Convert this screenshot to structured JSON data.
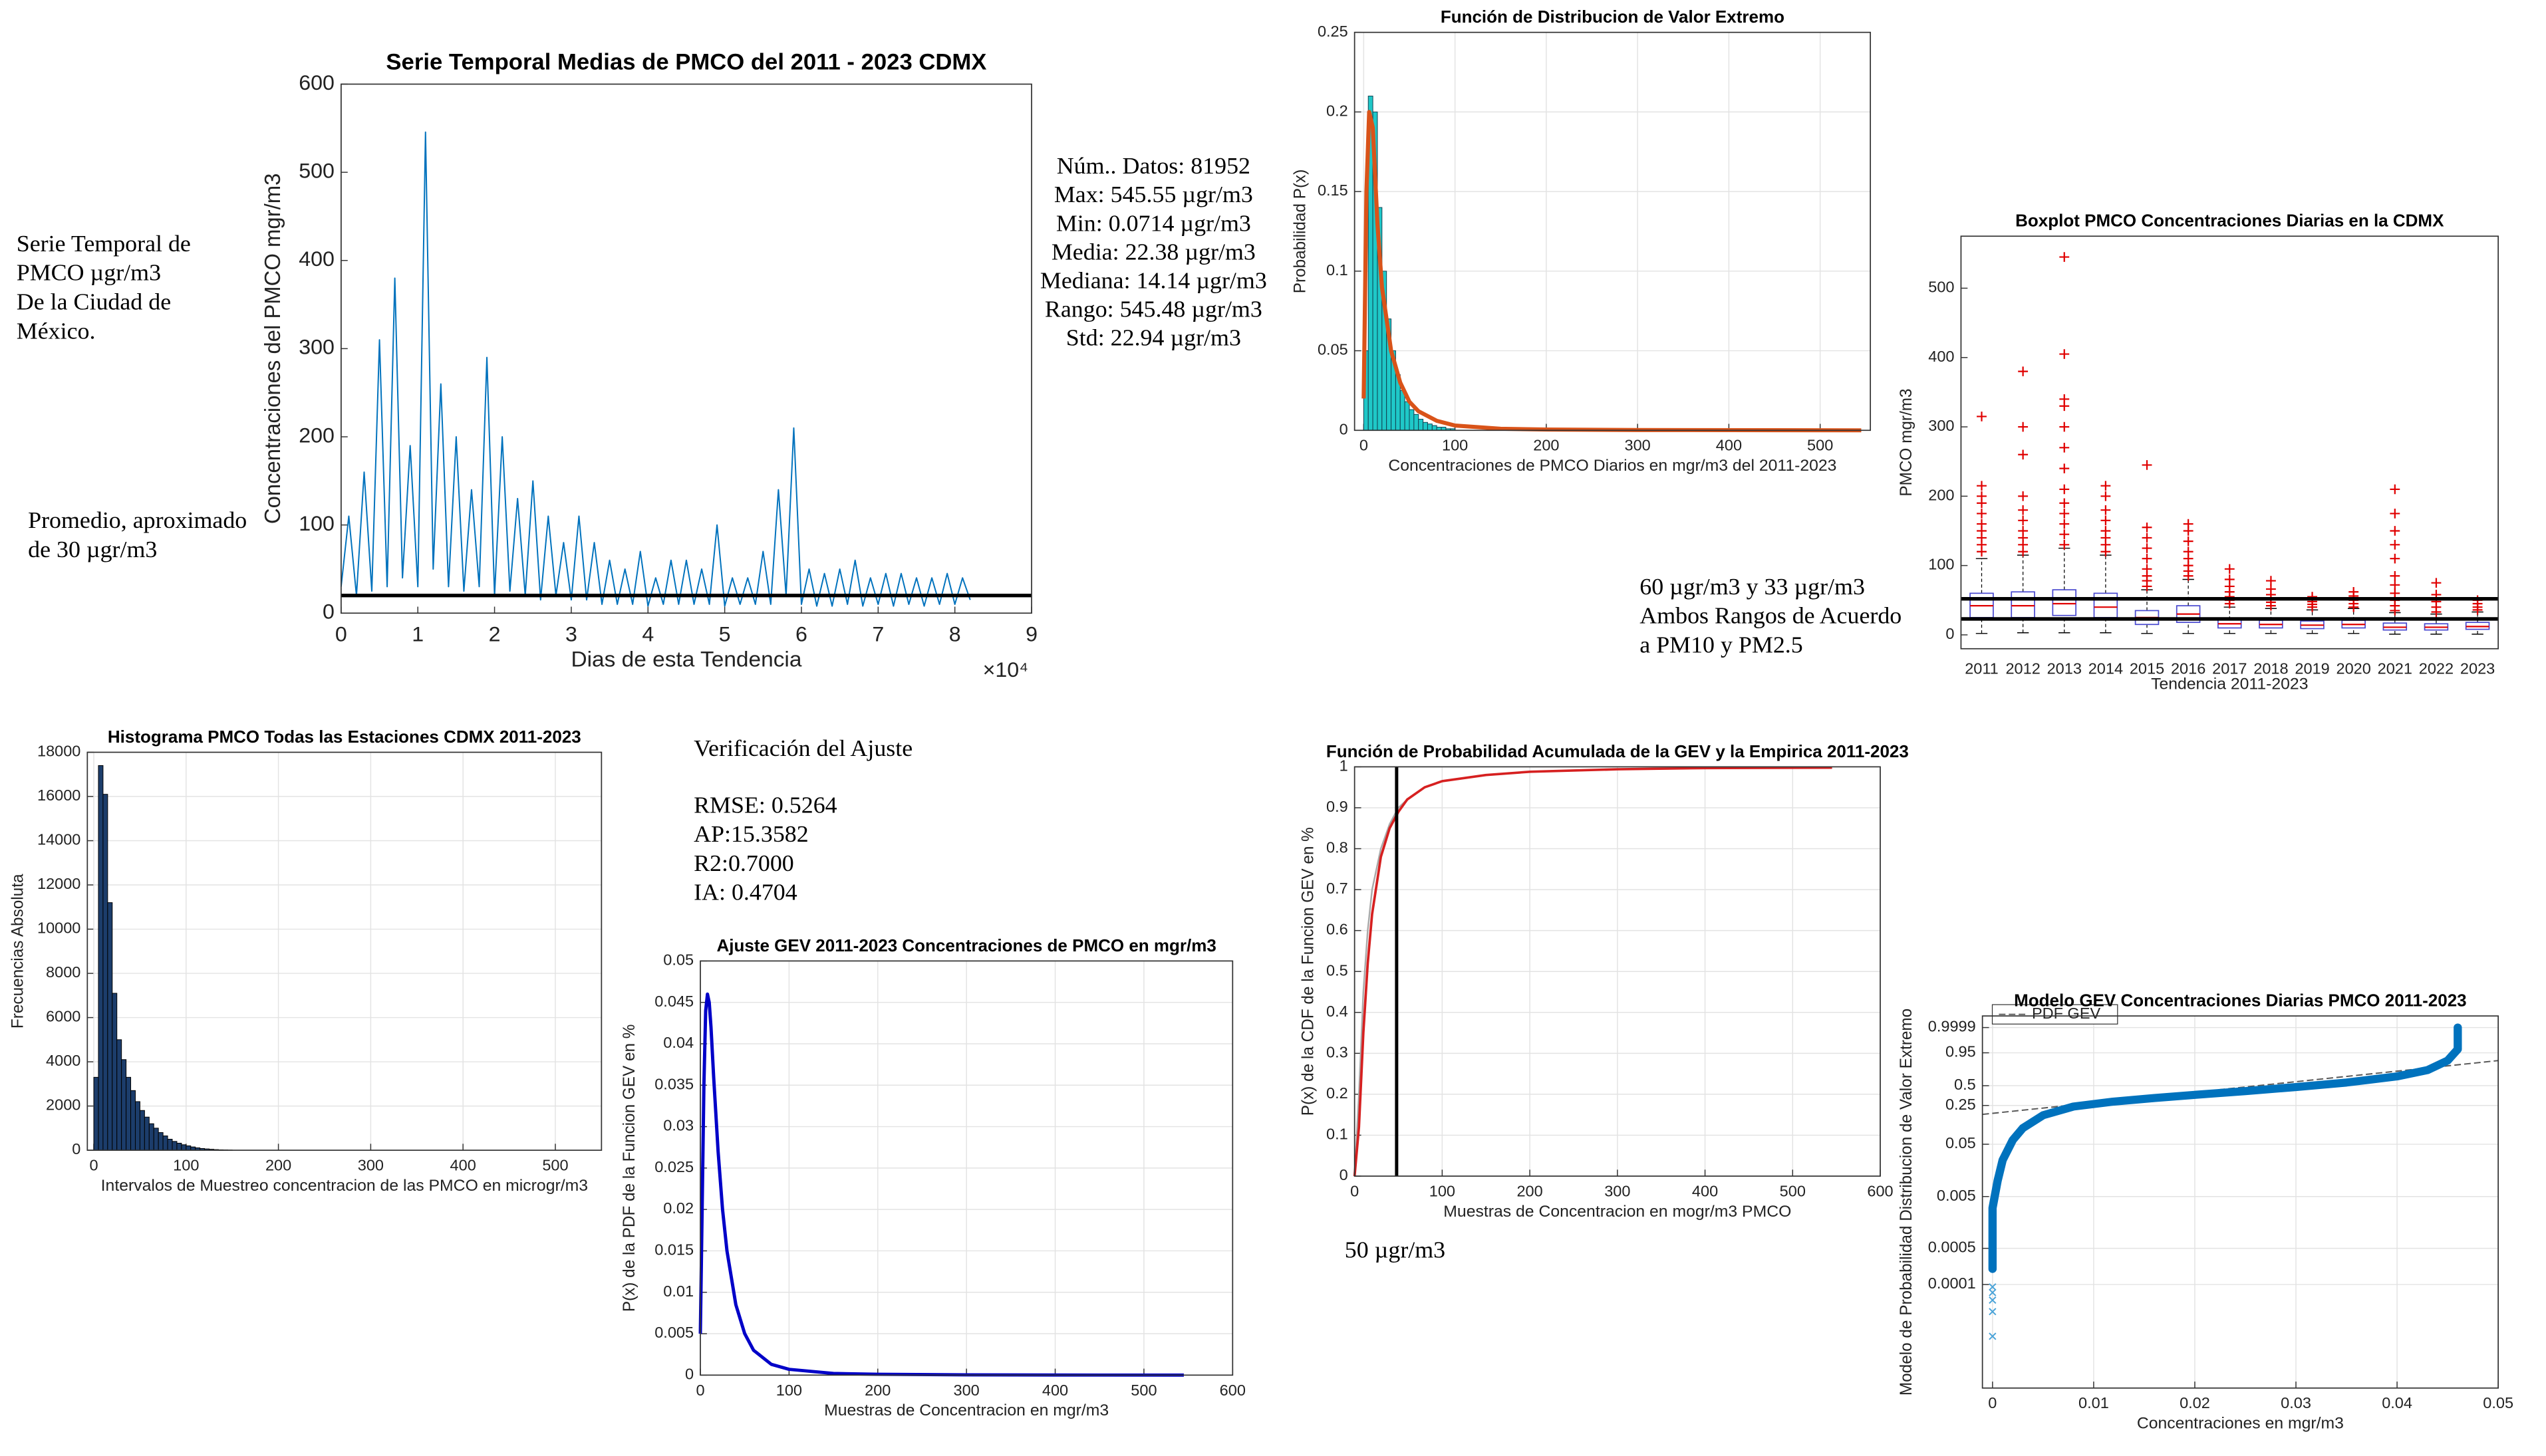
{
  "text_blocks": [
    {
      "lines": [
        "Serie Temporal de",
        "PMCO µgr/m3",
        "De la Ciudad de",
        "México."
      ]
    },
    {
      "lines": [
        "Promedio, aproximado",
        "de 30 µgr/m3"
      ]
    },
    {
      "lines": [
        "Núm.. Datos: 81952",
        "Max: 545.55 µgr/m3",
        "Min: 0.0714 µgr/m3",
        "Media: 22.38 µgr/m3",
        "Mediana: 14.14 µgr/m3",
        "Rango: 545.48 µgr/m3",
        "Std: 22.94 µgr/m3"
      ]
    },
    {
      "lines": [
        "60 µgr/m3 y 33 µgr/m3",
        "Ambos Rangos de Acuerdo",
        "a PM10 y PM2.5"
      ]
    },
    {
      "lines": [
        "Verificación del Ajuste"
      ]
    },
    {
      "lines": [
        "RMSE: 0.5264",
        "AP:15.3582",
        "R2:0.7000",
        "IA: 0.4704"
      ]
    },
    {
      "lines": [
        "50 µgr/m3"
      ]
    }
  ],
  "chart_data": [
    {
      "type": "line",
      "title": "Serie Temporal Medias de PMCO del 2011 - 2023 CDMX",
      "xlabel": "Dias de esta Tendencia",
      "ylabel": "Concentraciones del PMCO mgr/m3",
      "xlim": [
        0,
        90000
      ],
      "xticks": [
        0,
        {
          "value": 10000,
          "label": "1"
        },
        {
          "value": 20000,
          "label": "2"
        },
        {
          "value": 30000,
          "label": "3"
        },
        {
          "value": 40000,
          "label": "4"
        },
        {
          "value": 50000,
          "label": "5"
        },
        {
          "value": 60000,
          "label": "6"
        },
        {
          "value": 70000,
          "label": "7"
        },
        {
          "value": 80000,
          "label": "8"
        },
        {
          "value": 90000,
          "label": "9"
        }
      ],
      "xtick_multiplier": "×10⁴",
      "ylim": [
        0,
        600
      ],
      "yticks": [
        0,
        100,
        200,
        300,
        400,
        500,
        600
      ],
      "grid": false,
      "lines": [
        {
          "color": "#0072bd",
          "width": 0.8,
          "x": [
            0,
            1000,
            2000,
            3000,
            4000,
            5000,
            6000,
            7000,
            8000,
            9000,
            10000,
            11000,
            12000,
            13000,
            14000,
            15000,
            16000,
            17000,
            18000,
            19000,
            20000,
            21000,
            22000,
            23000,
            24000,
            25000,
            26000,
            27000,
            28000,
            29000,
            30000,
            31000,
            32000,
            33000,
            34000,
            35000,
            36000,
            37000,
            38000,
            39000,
            40000,
            41000,
            42000,
            43000,
            44000,
            45000,
            46000,
            47000,
            48000,
            49000,
            50000,
            51000,
            52000,
            53000,
            54000,
            55000,
            56000,
            57000,
            58000,
            59000,
            60000,
            61000,
            62000,
            63000,
            64000,
            65000,
            66000,
            67000,
            68000,
            69000,
            70000,
            71000,
            72000,
            73000,
            74000,
            75000,
            76000,
            77000,
            78000,
            79000,
            80000,
            81000,
            82000
          ],
          "values": [
            30,
            110,
            20,
            160,
            25,
            310,
            30,
            380,
            40,
            190,
            30,
            545.55,
            50,
            260,
            30,
            200,
            25,
            140,
            30,
            290,
            20,
            200,
            25,
            130,
            20,
            150,
            15,
            110,
            20,
            80,
            15,
            110,
            15,
            80,
            10,
            60,
            10,
            50,
            10,
            70,
            8,
            40,
            10,
            60,
            10,
            60,
            10,
            50,
            10,
            100,
            8,
            40,
            10,
            40,
            10,
            70,
            10,
            140,
            20,
            210,
            10,
            50,
            8,
            45,
            8,
            50,
            10,
            60,
            8,
            40,
            10,
            45,
            8,
            45,
            10,
            40,
            8,
            40,
            10,
            45,
            10,
            40,
            15
          ]
        }
      ],
      "reference_lines": [
        {
          "axis": "y",
          "value": 20,
          "color": "#000000"
        }
      ]
    },
    {
      "type": "histogram",
      "title": "Función de Distribucion de Valor Extremo",
      "xlabel": "Concentraciones de PMCO Diarios en mgr/m3 del 2011-2023",
      "ylabel": "Probabilidad P(x)",
      "xlim": [
        -10,
        555
      ],
      "xticks": [
        0,
        100,
        200,
        300,
        400,
        500
      ],
      "ylim": [
        0,
        0.25
      ],
      "yticks": [
        0,
        0.05,
        0.1,
        0.15,
        0.2,
        0.25
      ],
      "grid": true,
      "bins": [
        0,
        5,
        10,
        15,
        20,
        25,
        30,
        35,
        40,
        45,
        50,
        55,
        60,
        65,
        70,
        75,
        80,
        85,
        90,
        95,
        100
      ],
      "counts": [
        0.05,
        0.21,
        0.2,
        0.14,
        0.1,
        0.07,
        0.05,
        0.035,
        0.025,
        0.018,
        0.013,
        0.01,
        0.007,
        0.005,
        0.004,
        0.003,
        0.002,
        0.002,
        0.001,
        0.001
      ],
      "color": "#1fc8c8",
      "edgecolor": "#104050",
      "lines": [
        {
          "color": "#d95319",
          "width": 2.5,
          "x": [
            0,
            3,
            6,
            10,
            15,
            20,
            30,
            40,
            50,
            60,
            80,
            100,
            150,
            200,
            300,
            545
          ],
          "values": [
            0.02,
            0.15,
            0.2,
            0.19,
            0.13,
            0.09,
            0.05,
            0.03,
            0.018,
            0.012,
            0.006,
            0.003,
            0.001,
            0.0005,
            0.0002,
            0
          ]
        }
      ]
    },
    {
      "type": "boxplot",
      "title": "Boxplot PMCO Concentraciones Diarias en la CDMX",
      "xlabel": "Tendencia 2011-2023",
      "ylabel": "PMCO mgr/m3",
      "categories": [
        "2011",
        "2012",
        "2013",
        "2014",
        "2015",
        "2016",
        "2017",
        "2018",
        "2019",
        "2020",
        "2021",
        "2022",
        "2023"
      ],
      "ylim": [
        -20,
        575
      ],
      "yticks": [
        0,
        100,
        200,
        300,
        400,
        500
      ],
      "grid": false,
      "box_color": "#4a4ad0",
      "median_color": "#e00000",
      "outlier_color": "#e00000",
      "boxes": [
        {
          "min": 2,
          "q1": 25,
          "median": 42,
          "q3": 60,
          "max": 110,
          "outliers": [
            120,
            130,
            140,
            150,
            160,
            175,
            190,
            200,
            215,
            315
          ]
        },
        {
          "min": 3,
          "q1": 25,
          "median": 42,
          "q3": 62,
          "max": 115,
          "outliers": [
            120,
            130,
            140,
            150,
            165,
            180,
            200,
            260,
            300,
            380
          ]
        },
        {
          "min": 3,
          "q1": 28,
          "median": 45,
          "q3": 65,
          "max": 125,
          "outliers": [
            130,
            145,
            160,
            175,
            190,
            210,
            240,
            270,
            300,
            330,
            340,
            405,
            545
          ]
        },
        {
          "min": 3,
          "q1": 25,
          "median": 40,
          "q3": 60,
          "max": 115,
          "outliers": [
            120,
            130,
            140,
            150,
            165,
            180,
            200,
            215
          ]
        },
        {
          "min": 2,
          "q1": 15,
          "median": 25,
          "q3": 35,
          "max": 65,
          "outliers": [
            70,
            78,
            85,
            95,
            110,
            125,
            140,
            155,
            245
          ]
        },
        {
          "min": 2,
          "q1": 18,
          "median": 30,
          "q3": 42,
          "max": 80,
          "outliers": [
            85,
            92,
            100,
            110,
            120,
            135,
            150,
            160
          ]
        },
        {
          "min": 2,
          "q1": 10,
          "median": 16,
          "q3": 22,
          "max": 40,
          "outliers": [
            45,
            50,
            55,
            62,
            70,
            80,
            95
          ]
        },
        {
          "min": 2,
          "q1": 10,
          "median": 15,
          "q3": 21,
          "max": 38,
          "outliers": [
            42,
            47,
            52,
            58,
            66,
            78
          ]
        },
        {
          "min": 2,
          "q1": 9,
          "median": 14,
          "q3": 20,
          "max": 36,
          "outliers": [
            40,
            44,
            48,
            55
          ]
        },
        {
          "min": 2,
          "q1": 10,
          "median": 15,
          "q3": 21,
          "max": 38,
          "outliers": [
            40,
            45,
            50,
            56,
            62
          ]
        },
        {
          "min": 1,
          "q1": 7,
          "median": 11,
          "q3": 17,
          "max": 32,
          "outliers": [
            35,
            42,
            50,
            60,
            72,
            85,
            110,
            130,
            150,
            175,
            210
          ]
        },
        {
          "min": 1,
          "q1": 7,
          "median": 11,
          "q3": 16,
          "max": 30,
          "outliers": [
            33,
            40,
            48,
            58,
            75
          ]
        },
        {
          "min": 1,
          "q1": 8,
          "median": 12,
          "q3": 18,
          "max": 33,
          "outliers": [
            36,
            40,
            45,
            50
          ]
        }
      ],
      "reference_lines": [
        {
          "axis": "y",
          "value": 52,
          "color": "#000000"
        },
        {
          "axis": "y",
          "value": 23,
          "color": "#000000"
        }
      ]
    },
    {
      "type": "histogram",
      "title": "Histograma PMCO Todas las Estaciones CDMX 2011-2023",
      "xlabel": "Intervalos de Muestreo concentracion de las PMCO en microgr/m3",
      "ylabel": "Frecuencias Absoluta",
      "xlim": [
        -7,
        550
      ],
      "xticks": [
        0,
        100,
        200,
        300,
        400,
        500
      ],
      "ylim": [
        0,
        18000
      ],
      "yticks": [
        0,
        2000,
        4000,
        6000,
        8000,
        10000,
        12000,
        14000,
        16000,
        18000
      ],
      "grid": true,
      "bins": [
        0,
        5,
        10,
        15,
        20,
        25,
        30,
        35,
        40,
        45,
        50,
        55,
        60,
        65,
        70,
        75,
        80,
        85,
        90,
        95,
        100,
        105,
        110,
        115,
        120,
        125,
        130,
        135,
        140,
        145,
        150
      ],
      "counts": [
        3300,
        17400,
        16100,
        11200,
        7100,
        5000,
        4100,
        3300,
        2700,
        2200,
        1800,
        1500,
        1200,
        1000,
        800,
        650,
        500,
        400,
        320,
        250,
        200,
        150,
        110,
        80,
        60,
        45,
        30,
        20,
        15,
        10
      ],
      "color": "#1c3d6b",
      "edgecolor": "#000000"
    },
    {
      "type": "line",
      "title": "Ajuste GEV 2011-2023 Concentraciones de PMCO en mgr/m3",
      "xlabel": "Muestras de Concentracion en mgr/m3",
      "ylabel": "P(x) de la PDF de la Funcion GEV en %",
      "xlim": [
        0,
        600
      ],
      "xticks": [
        0,
        100,
        200,
        300,
        400,
        500,
        600
      ],
      "ylim": [
        0,
        0.05
      ],
      "yticks": [
        0,
        0.005,
        0.01,
        0.015,
        0.02,
        0.025,
        0.03,
        0.035,
        0.04,
        0.045,
        0.05
      ],
      "grid": true,
      "lines": [
        {
          "color": "#0000c8",
          "width": 2,
          "x": [
            0,
            2,
            4,
            6,
            8,
            10,
            12,
            15,
            20,
            25,
            30,
            40,
            50,
            60,
            80,
            100,
            150,
            200,
            300,
            400,
            545
          ],
          "values": [
            0.005,
            0.02,
            0.035,
            0.044,
            0.046,
            0.045,
            0.042,
            0.036,
            0.027,
            0.02,
            0.015,
            0.0085,
            0.005,
            0.003,
            0.0013,
            0.0007,
            0.0002,
            0.0001,
            3e-05,
            1e-05,
            0
          ]
        }
      ]
    },
    {
      "type": "line",
      "title": "Función de Probabilidad Acumulada de la GEV y la Empirica 2011-2023",
      "xlabel": "Muestras de Concentracion en mogr/m3 PMCO",
      "ylabel": "P(x) de la CDF de la Funcion GEV en %",
      "xlim": [
        0,
        600
      ],
      "xticks": [
        0,
        100,
        200,
        300,
        400,
        500,
        600
      ],
      "ylim": [
        0,
        1
      ],
      "yticks": [
        0,
        0.1,
        0.2,
        0.3,
        0.4,
        0.5,
        0.6,
        0.7,
        0.8,
        0.9,
        1
      ],
      "grid": true,
      "lines": [
        {
          "color": "#aaaaaa",
          "width": 1,
          "x": [
            0,
            5,
            10,
            15,
            20,
            30,
            40,
            50,
            60,
            80,
            100,
            150,
            200,
            300,
            400,
            545
          ],
          "values": [
            0,
            0.2,
            0.45,
            0.6,
            0.7,
            0.8,
            0.86,
            0.9,
            0.92,
            0.95,
            0.965,
            0.98,
            0.988,
            0.994,
            0.997,
            0.998
          ]
        },
        {
          "color": "#d62020",
          "width": 1.5,
          "x": [
            0,
            5,
            10,
            15,
            20,
            30,
            40,
            50,
            60,
            80,
            100,
            150,
            200,
            300,
            400,
            545
          ],
          "values": [
            0,
            0.12,
            0.35,
            0.52,
            0.64,
            0.78,
            0.85,
            0.89,
            0.92,
            0.95,
            0.965,
            0.98,
            0.988,
            0.994,
            0.997,
            0.998
          ]
        }
      ],
      "reference_lines": [
        {
          "axis": "x",
          "value": 48,
          "color": "#000000"
        }
      ]
    },
    {
      "type": "probability",
      "title": "Modelo GEV Concentraciones Diarias PMCO 2011-2023",
      "xlabel": "Concentraciones en mgr/m3",
      "ylabel": "Modelo de Probabilidad Distribucion de Valor Extremo",
      "y_scale": "extreme-value",
      "xlim": [
        -0.001,
        0.05
      ],
      "xticks": [
        0,
        0.01,
        0.02,
        0.03,
        0.04,
        0.05
      ],
      "ylim": [
        1e-06,
        0.9999998
      ],
      "yticks": [
        0.0001,
        0.0005,
        0.005,
        0.05,
        0.25,
        0.5,
        0.95,
        0.9999
      ],
      "grid": true,
      "legend": "upper-left",
      "points": {
        "color": "#0072bd",
        "x": [
          0,
          0,
          0,
          0.0005,
          0.001,
          0.002,
          0.003,
          0.005,
          0.008,
          0.012,
          0.016,
          0.02,
          0.025,
          0.03,
          0.035,
          0.04,
          0.043,
          0.045,
          0.046,
          0.046,
          0.046
        ],
        "values": [
          0.0002,
          0.0008,
          0.003,
          0.01,
          0.025,
          0.06,
          0.1,
          0.17,
          0.24,
          0.29,
          0.33,
          0.37,
          0.42,
          0.48,
          0.55,
          0.65,
          0.75,
          0.88,
          0.97,
          0.999,
          0.9999
        ]
      },
      "censored": {
        "color": "#4aa3d8",
        "x": [
          0,
          0,
          0,
          0,
          0
        ],
        "values": [
          9e-05,
          7e-05,
          5e-05,
          3e-05,
          1e-05
        ]
      },
      "fit": {
        "name": "PDF GEV",
        "color": "#555555",
        "x": [
          -0.001,
          0.05
        ],
        "values": [
          0.176,
          0.88
        ]
      }
    }
  ]
}
